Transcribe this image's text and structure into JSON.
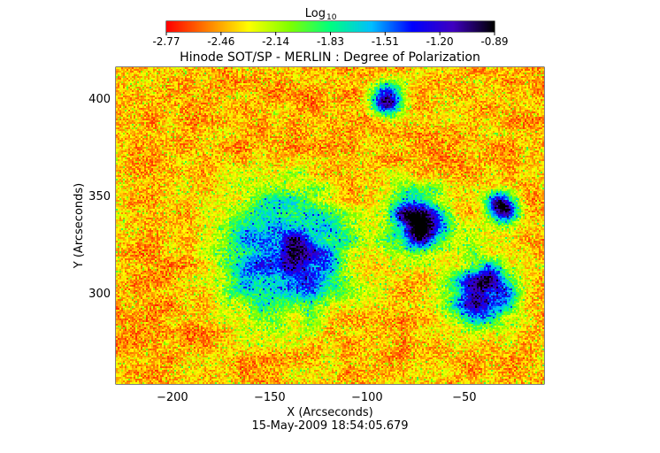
{
  "colorbar": {
    "label_main": "Log",
    "label_sub": "10",
    "ticks": [
      "-2.77",
      "-2.46",
      "-2.14",
      "-1.83",
      "-1.51",
      "-1.20",
      "-0.89"
    ],
    "range": [
      -2.77,
      -0.89
    ],
    "colors": [
      "#ff0000",
      "#ff8000",
      "#ffff00",
      "#80ff00",
      "#00ff80",
      "#00c0ff",
      "#0000ff",
      "#4000c0",
      "#000000"
    ]
  },
  "chart_data": {
    "type": "heatmap",
    "title": "Hinode SOT/SP - MERLIN : Degree of Polarization",
    "xlabel": "X (Arcseconds)",
    "ylabel": "Y (Arcseconds)",
    "xlim": [
      -229,
      -9
    ],
    "ylim": [
      253,
      416
    ],
    "x_ticks": [
      -200,
      -150,
      -100,
      -50
    ],
    "x_tick_labels": [
      "−200",
      "−150",
      "−100",
      "−50"
    ],
    "y_ticks": [
      300,
      350,
      400
    ],
    "y_tick_labels": [
      "300",
      "350",
      "400"
    ],
    "value_scale": "log10",
    "value_range": [
      -2.77,
      -0.89
    ],
    "timestamp": "15-May-2009 18:54:05.679",
    "strong_polarization_regions": [
      {
        "center": [
          -140,
          320
        ],
        "extent": "large"
      },
      {
        "center": [
          -75,
          335
        ],
        "extent": "medium"
      },
      {
        "center": [
          -40,
          300
        ],
        "extent": "medium"
      },
      {
        "center": [
          -30,
          345
        ],
        "extent": "small"
      },
      {
        "center": [
          -90,
          400
        ],
        "extent": "small"
      }
    ]
  }
}
